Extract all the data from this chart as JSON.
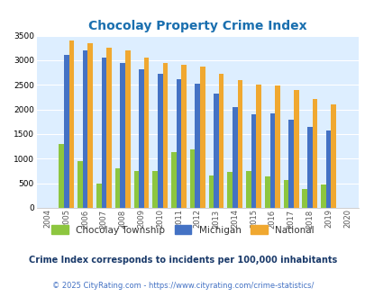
{
  "title": "Chocolay Property Crime Index",
  "title_color": "#1a6faf",
  "years": [
    "2004",
    "2005",
    "2006",
    "2007",
    "2008",
    "2009",
    "2010",
    "2011",
    "2012",
    "2013",
    "2014",
    "2015",
    "2016",
    "2017",
    "2018",
    "2019",
    "2020"
  ],
  "chocolay": [
    0,
    1300,
    950,
    500,
    800,
    750,
    750,
    1130,
    1180,
    650,
    730,
    750,
    640,
    575,
    380,
    480,
    0
  ],
  "michigan": [
    0,
    3100,
    3200,
    3050,
    2940,
    2820,
    2720,
    2620,
    2530,
    2330,
    2040,
    1900,
    1920,
    1790,
    1640,
    1570,
    0
  ],
  "national": [
    0,
    3400,
    3340,
    3260,
    3200,
    3050,
    2950,
    2900,
    2870,
    2730,
    2600,
    2500,
    2480,
    2390,
    2210,
    2110,
    0
  ],
  "bar_width": 0.27,
  "color_chocolay": "#8dc63f",
  "color_michigan": "#4472c4",
  "color_national": "#f0a830",
  "ylim": [
    0,
    3500
  ],
  "yticks": [
    0,
    500,
    1000,
    1500,
    2000,
    2500,
    3000,
    3500
  ],
  "bg_color": "#ddeeff",
  "grid_color": "#ffffff",
  "subtitle": "Crime Index corresponds to incidents per 100,000 inhabitants",
  "footer": "© 2025 CityRating.com - https://www.cityrating.com/crime-statistics/",
  "legend_labels": [
    "Chocolay Township",
    "Michigan",
    "National"
  ],
  "subtitle_color": "#1a3a6a",
  "footer_color": "#4472c4"
}
